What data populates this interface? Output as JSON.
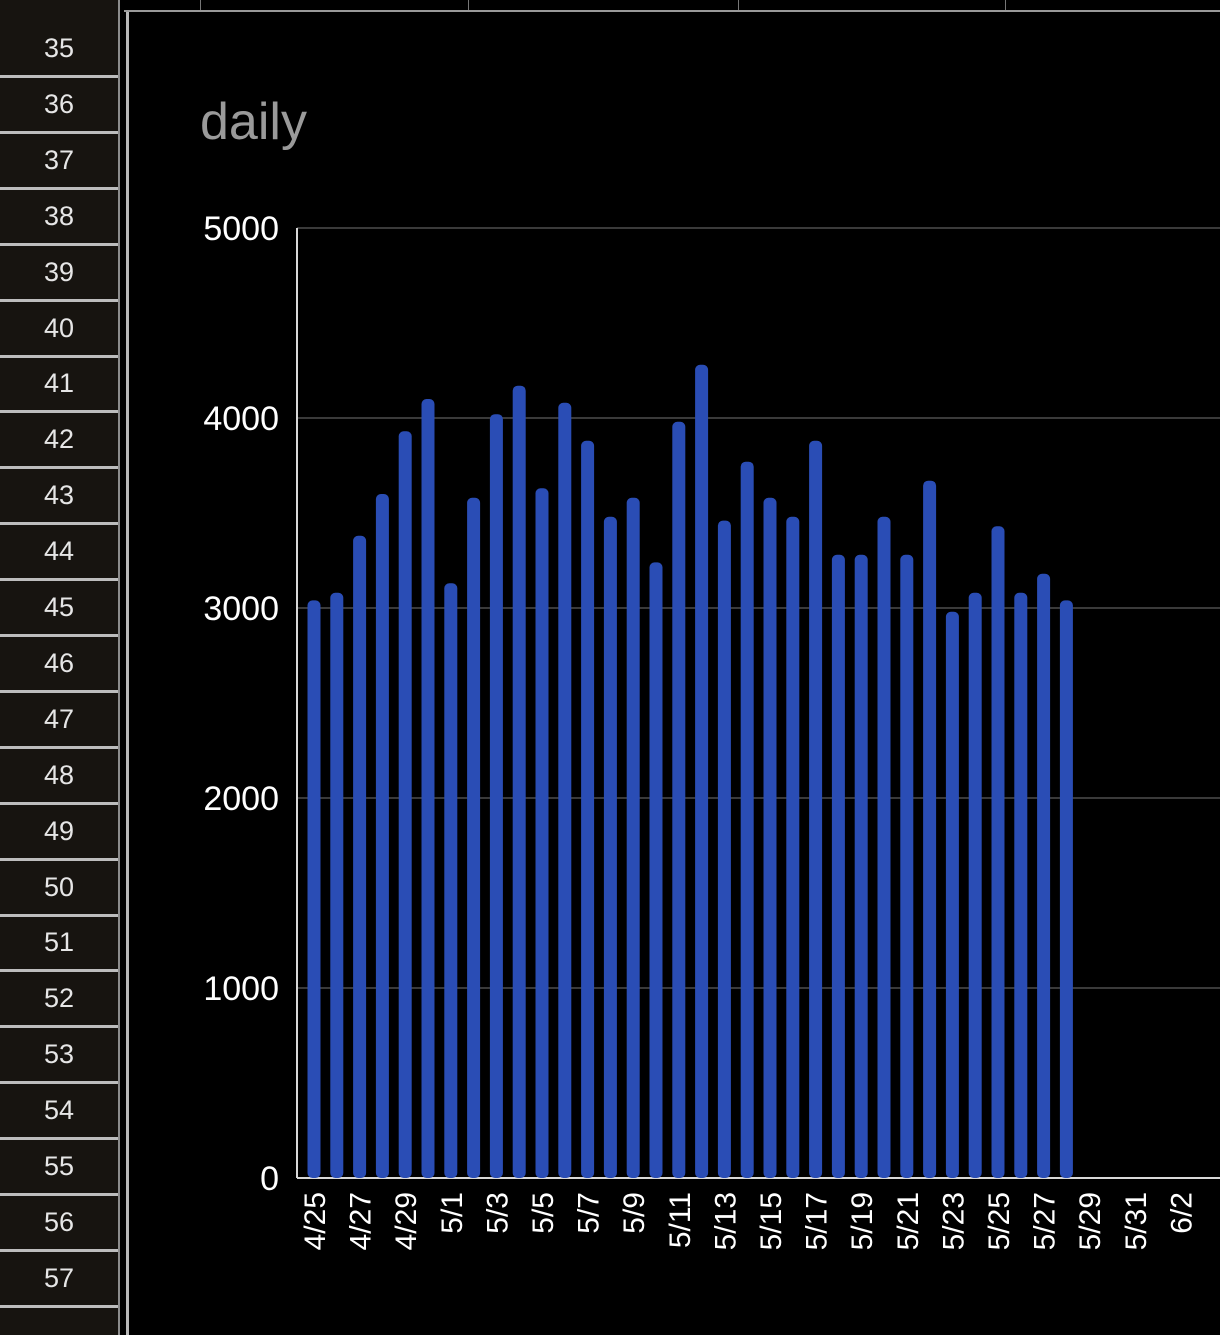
{
  "sheet": {
    "row_numbers": [
      "35",
      "36",
      "37",
      "38",
      "39",
      "40",
      "41",
      "42",
      "43",
      "44",
      "45",
      "46",
      "47",
      "48",
      "49",
      "50",
      "51",
      "52",
      "53",
      "54",
      "55",
      "56",
      "57"
    ]
  },
  "chart_data": {
    "type": "bar",
    "title": "daily",
    "xlabel": "",
    "ylabel": "",
    "ylim": [
      0,
      5000
    ],
    "yticks": [
      "0",
      "1000",
      "2000",
      "3000",
      "4000",
      "5000"
    ],
    "grid": true,
    "legend": "none",
    "bar_color": "#2a4db5",
    "categories": [
      "4/25",
      "4/26",
      "4/27",
      "4/28",
      "4/29",
      "4/30",
      "5/1",
      "5/2",
      "5/3",
      "5/4",
      "5/5",
      "5/6",
      "5/7",
      "5/8",
      "5/9",
      "5/10",
      "5/11",
      "5/12",
      "5/13",
      "5/14",
      "5/15",
      "5/16",
      "5/17",
      "5/18",
      "5/19",
      "5/20",
      "5/21",
      "5/22",
      "5/23",
      "5/24",
      "5/25",
      "5/26",
      "5/27",
      "5/28",
      "5/29",
      "5/30",
      "5/31",
      "6/1",
      "6/2"
    ],
    "xtick_labels": [
      "4/25",
      "4/27",
      "4/29",
      "5/1",
      "5/3",
      "5/5",
      "5/7",
      "5/9",
      "5/11",
      "5/13",
      "5/15",
      "5/17",
      "5/19",
      "5/21",
      "5/23",
      "5/25",
      "5/27",
      "5/29",
      "5/31",
      "6/2"
    ],
    "values": [
      3040,
      3080,
      3380,
      3600,
      3930,
      4100,
      3130,
      3580,
      4020,
      4170,
      3630,
      4080,
      3880,
      3480,
      3580,
      3240,
      3980,
      4280,
      3460,
      3770,
      3580,
      3480,
      3880,
      3280,
      3280,
      3480,
      3280,
      3670,
      2980,
      3080,
      3430,
      3080,
      3180,
      3040,
      null,
      null,
      null,
      null,
      null
    ]
  }
}
